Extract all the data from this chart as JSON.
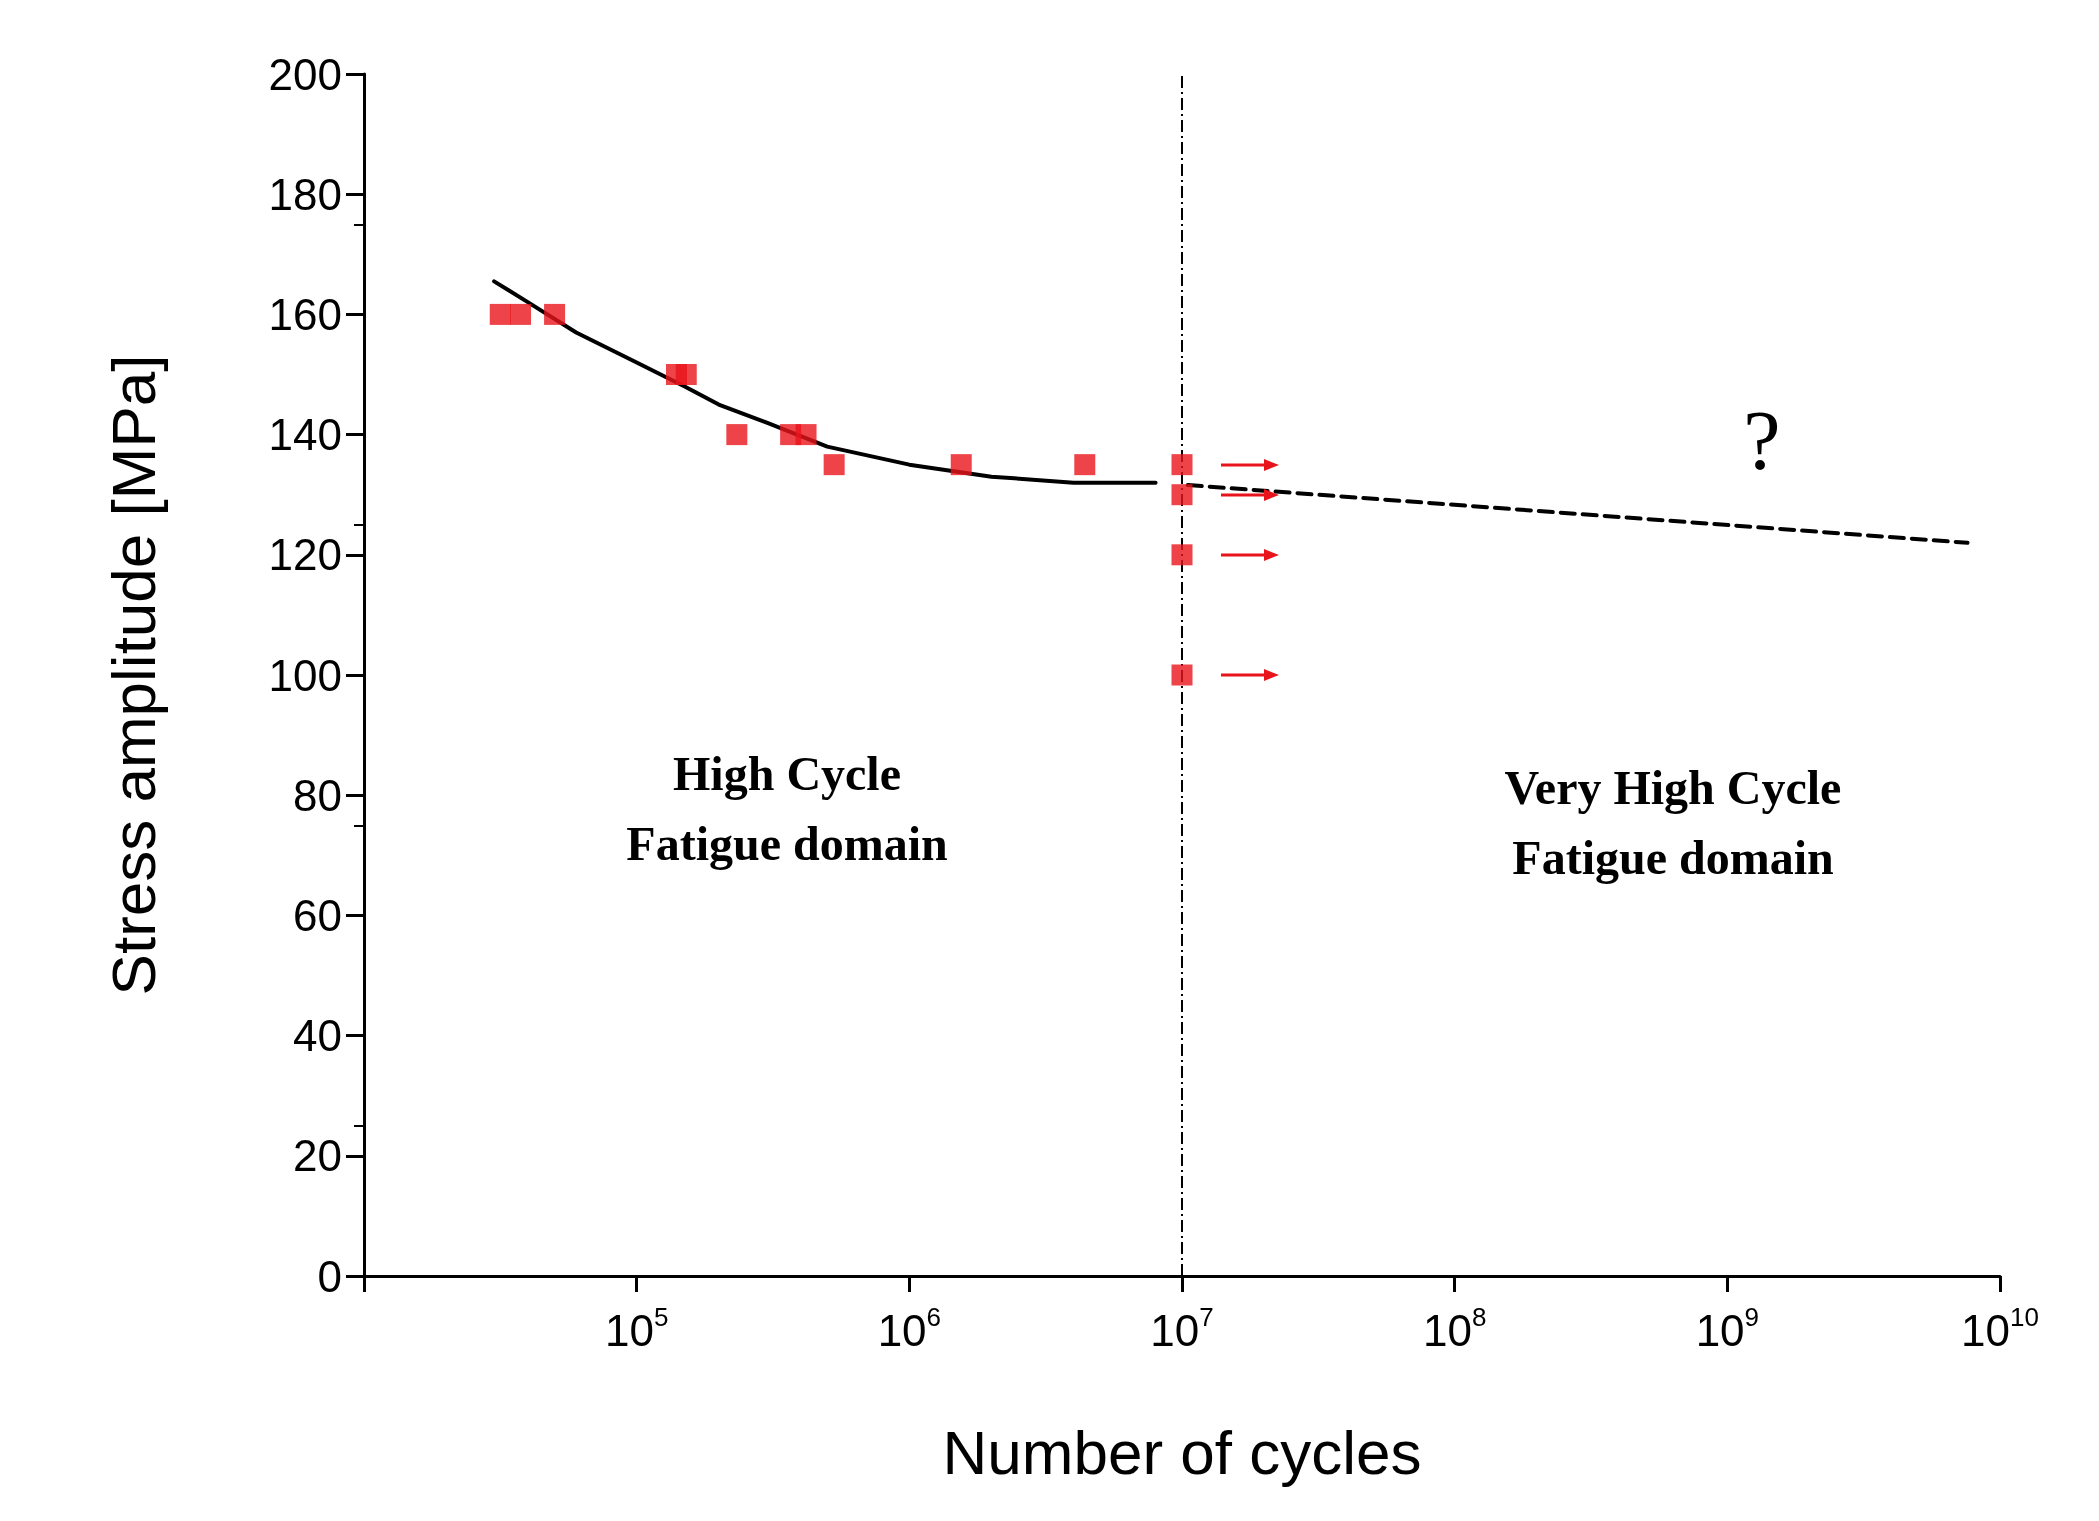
{
  "chart_data": {
    "type": "scatter",
    "xlabel": "Number of cycles",
    "ylabel": "Stress amplitude [MPa]",
    "log": "x",
    "grid": false,
    "xlim": [
      10000,
      10000000000
    ],
    "xticks": [
      {
        "value": 10000,
        "label": null
      },
      {
        "value": 100000,
        "label": "10$^{5}$"
      },
      {
        "value": 1000000,
        "label": "10$^{6}$"
      },
      {
        "value": 10000000,
        "label": "10$^{7}$"
      },
      {
        "value": 100000000,
        "label": "10$^{8}$"
      },
      {
        "value": 1000000000,
        "label": "10$^{9}$"
      },
      {
        "value": 10000000000,
        "label": "10$^{10}$"
      }
    ],
    "ylim": [
      0,
      200
    ],
    "yticks": [
      0,
      20,
      40,
      60,
      80,
      100,
      120,
      140,
      160,
      180,
      200
    ],
    "series": [
      {
        "type": "scatter",
        "marker": "square",
        "color": "#e8141b",
        "x": [
          31600,
          37500,
          50000,
          140000,
          152000,
          233000,
          367000,
          418000,
          530000,
          1550000,
          4400000,
          10000000,
          10000000,
          10000000,
          10000000
        ],
        "values": [
          160,
          160,
          160,
          150,
          150,
          140,
          140,
          140,
          135,
          135,
          135,
          135,
          130,
          120,
          100
        ]
      },
      {
        "type": "line",
        "marker": "none",
        "line_style": "solid",
        "color": "#000000",
        "x": [
          30000,
          40000,
          60000,
          100000,
          150000,
          200000,
          300000,
          500000,
          1000000,
          2000000,
          4000000,
          8000000
        ],
        "values": [
          165.5,
          162,
          157,
          152,
          148,
          145,
          142,
          138,
          135,
          133,
          132,
          132
        ]
      },
      {
        "type": "line",
        "marker": "none",
        "line_style": "dashed",
        "color": "#000000",
        "x": [
          10500000,
          7600000000
        ],
        "values": [
          131.6,
          122
        ]
      }
    ],
    "ref_lines": [
      {
        "axis": "x",
        "value": 10000000,
        "line_style": "dashed",
        "color": "#000000"
      }
    ],
    "annotations": [
      "High Cycle\nFatigue domain",
      "Very High Cycle\nFatigue domain",
      "?"
    ]
  }
}
